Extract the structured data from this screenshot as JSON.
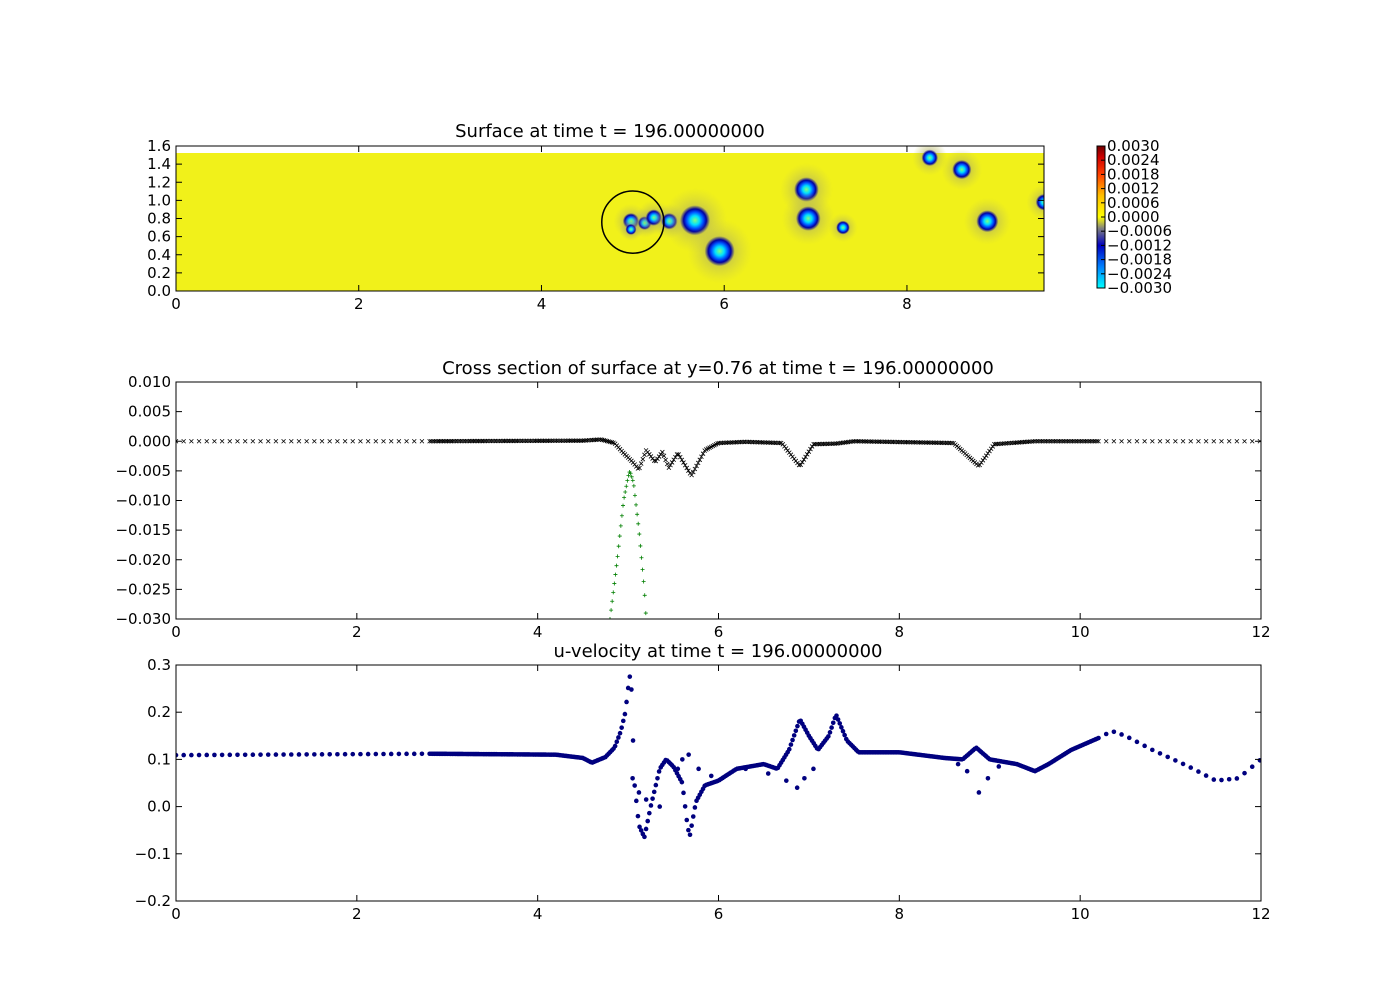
{
  "chart_data": [
    {
      "type": "heatmap",
      "title": "Surface at time t =   196.00000000",
      "xlim": [
        0,
        9.5
      ],
      "ylim": [
        0,
        1.6
      ],
      "xticks": [
        "0",
        "2",
        "4",
        "6",
        "8"
      ],
      "yticks": [
        "0.0",
        "0.2",
        "0.4",
        "0.6",
        "0.8",
        "1.0",
        "1.2",
        "1.4",
        "1.6"
      ],
      "colorbar": {
        "ticks": [
          "0.0030",
          "0.0024",
          "0.0018",
          "0.0012",
          "0.0006",
          "0.0000",
          "−0.0006",
          "−0.0012",
          "−0.0018",
          "−0.0024",
          "−0.0030"
        ],
        "range": [
          -0.003,
          0.003
        ]
      },
      "background_color": "#ffff00",
      "circle": {
        "cx": 5.0,
        "cy": 0.76,
        "r": 0.34
      },
      "vortices": [
        {
          "x": 4.98,
          "y": 0.77,
          "r": 0.06
        },
        {
          "x": 4.98,
          "y": 0.68,
          "r": 0.04
        },
        {
          "x": 5.13,
          "y": 0.75,
          "r": 0.05
        },
        {
          "x": 5.23,
          "y": 0.81,
          "r": 0.06
        },
        {
          "x": 5.4,
          "y": 0.77,
          "r": 0.06
        },
        {
          "x": 5.68,
          "y": 0.78,
          "r": 0.11
        },
        {
          "x": 5.95,
          "y": 0.44,
          "r": 0.11
        },
        {
          "x": 6.9,
          "y": 1.12,
          "r": 0.09
        },
        {
          "x": 6.92,
          "y": 0.8,
          "r": 0.09
        },
        {
          "x": 7.3,
          "y": 0.7,
          "r": 0.05
        },
        {
          "x": 8.25,
          "y": 1.47,
          "r": 0.06
        },
        {
          "x": 8.6,
          "y": 1.34,
          "r": 0.07
        },
        {
          "x": 8.88,
          "y": 0.77,
          "r": 0.08
        },
        {
          "x": 9.5,
          "y": 0.98,
          "r": 0.06
        }
      ]
    },
    {
      "type": "scatter",
      "title": "Cross section of surface at y=0.76 at time t =   196.00000000",
      "xlim": [
        0,
        12
      ],
      "ylim": [
        -0.03,
        0.01
      ],
      "xticks": [
        "0",
        "2",
        "4",
        "6",
        "8",
        "10",
        "12"
      ],
      "yticks": [
        "0.010",
        "0.005",
        "0.000",
        "−0.005",
        "−0.010",
        "−0.015",
        "−0.020",
        "−0.025",
        "−0.030"
      ],
      "series": [
        {
          "marker": "x",
          "color": "#000000",
          "profile": [
            [
              0,
              0.0
            ],
            [
              2.8,
              0.0
            ],
            [
              4.5,
              0.0001
            ],
            [
              4.7,
              0.0003
            ],
            [
              4.85,
              -0.0003
            ],
            [
              4.95,
              -0.002
            ],
            [
              5.05,
              -0.0035
            ],
            [
              5.12,
              -0.0048
            ],
            [
              5.2,
              -0.0015
            ],
            [
              5.3,
              -0.0035
            ],
            [
              5.38,
              -0.0018
            ],
            [
              5.45,
              -0.0045
            ],
            [
              5.55,
              -0.002
            ],
            [
              5.7,
              -0.0058
            ],
            [
              5.85,
              -0.0015
            ],
            [
              6.0,
              -0.0003
            ],
            [
              6.3,
              -0.0001
            ],
            [
              6.7,
              -0.0003
            ],
            [
              6.9,
              -0.0042
            ],
            [
              7.05,
              -0.0005
            ],
            [
              7.3,
              -0.0004
            ],
            [
              7.5,
              0.0
            ],
            [
              8.6,
              -0.0003
            ],
            [
              8.88,
              -0.0042
            ],
            [
              9.05,
              -0.0005
            ],
            [
              9.5,
              0.0
            ],
            [
              10.2,
              0.0
            ],
            [
              12,
              0.0
            ]
          ]
        },
        {
          "marker": "+",
          "color": "#007f00",
          "profile": [
            [
              4.8,
              -0.03
            ],
            [
              4.88,
              -0.02
            ],
            [
              4.95,
              -0.01
            ],
            [
              5.0,
              -0.006
            ],
            [
              5.02,
              -0.005
            ],
            [
              5.06,
              -0.007
            ],
            [
              5.12,
              -0.015
            ],
            [
              5.18,
              -0.025
            ],
            [
              5.2,
              -0.03
            ]
          ]
        }
      ]
    },
    {
      "type": "scatter",
      "title": "u-velocity at time t =   196.00000000",
      "xlim": [
        0,
        12
      ],
      "ylim": [
        -0.2,
        0.3
      ],
      "xticks": [
        "0",
        "2",
        "4",
        "6",
        "8",
        "10",
        "12"
      ],
      "yticks": [
        "0.3",
        "0.2",
        "0.1",
        "0.0",
        "−0.1",
        "−0.2"
      ],
      "series": [
        {
          "marker": "o",
          "color": "#00007f",
          "profile": [
            [
              0,
              0.109
            ],
            [
              2.8,
              0.112
            ],
            [
              4.2,
              0.11
            ],
            [
              4.5,
              0.103
            ],
            [
              4.6,
              0.093
            ],
            [
              4.75,
              0.105
            ],
            [
              4.85,
              0.125
            ],
            [
              4.92,
              0.16
            ],
            [
              4.97,
              0.2
            ],
            [
              5.0,
              0.25
            ],
            [
              5.03,
              0.29
            ],
            [
              5.07,
              0.05
            ],
            [
              5.12,
              -0.04
            ],
            [
              5.18,
              -0.065
            ],
            [
              5.25,
              0.0
            ],
            [
              5.35,
              0.08
            ],
            [
              5.42,
              0.1
            ],
            [
              5.5,
              0.085
            ],
            [
              5.6,
              0.05
            ],
            [
              5.65,
              -0.03
            ],
            [
              5.68,
              -0.065
            ],
            [
              5.75,
              0.01
            ],
            [
              5.85,
              0.045
            ],
            [
              6.0,
              0.055
            ],
            [
              6.2,
              0.08
            ],
            [
              6.5,
              0.09
            ],
            [
              6.65,
              0.08
            ],
            [
              6.78,
              0.12
            ],
            [
              6.9,
              0.185
            ],
            [
              7.0,
              0.15
            ],
            [
              7.1,
              0.12
            ],
            [
              7.22,
              0.15
            ],
            [
              7.3,
              0.195
            ],
            [
              7.42,
              0.14
            ],
            [
              7.55,
              0.115
            ],
            [
              8.0,
              0.115
            ],
            [
              8.5,
              0.103
            ],
            [
              8.7,
              0.1
            ],
            [
              8.85,
              0.125
            ],
            [
              9.0,
              0.1
            ],
            [
              9.3,
              0.09
            ],
            [
              9.5,
              0.075
            ],
            [
              9.65,
              0.09
            ],
            [
              9.9,
              0.12
            ],
            [
              10.2,
              0.145
            ],
            [
              10.35,
              0.16
            ],
            [
              10.5,
              0.15
            ],
            [
              10.8,
              0.12
            ],
            [
              11.2,
              0.085
            ],
            [
              11.5,
              0.055
            ],
            [
              11.75,
              0.06
            ],
            [
              12,
              0.1
            ]
          ]
        },
        {
          "marker": "o",
          "color": "#00007f",
          "profile": [
            [
              5.05,
              0.06
            ],
            [
              5.12,
              0.03
            ],
            [
              5.2,
              0.015
            ],
            [
              5.35,
              0.0
            ],
            [
              5.55,
              0.08
            ],
            [
              5.6,
              0.1
            ],
            [
              5.67,
              0.11
            ],
            [
              5.78,
              0.08
            ],
            [
              5.92,
              0.065
            ],
            [
              6.3,
              0.08
            ],
            [
              6.55,
              0.07
            ],
            [
              6.75,
              0.055
            ],
            [
              6.87,
              0.04
            ],
            [
              6.95,
              0.06
            ],
            [
              7.05,
              0.08
            ],
            [
              8.65,
              0.09
            ],
            [
              8.75,
              0.075
            ],
            [
              8.88,
              0.03
            ],
            [
              8.98,
              0.06
            ],
            [
              9.1,
              0.085
            ]
          ]
        }
      ]
    }
  ]
}
